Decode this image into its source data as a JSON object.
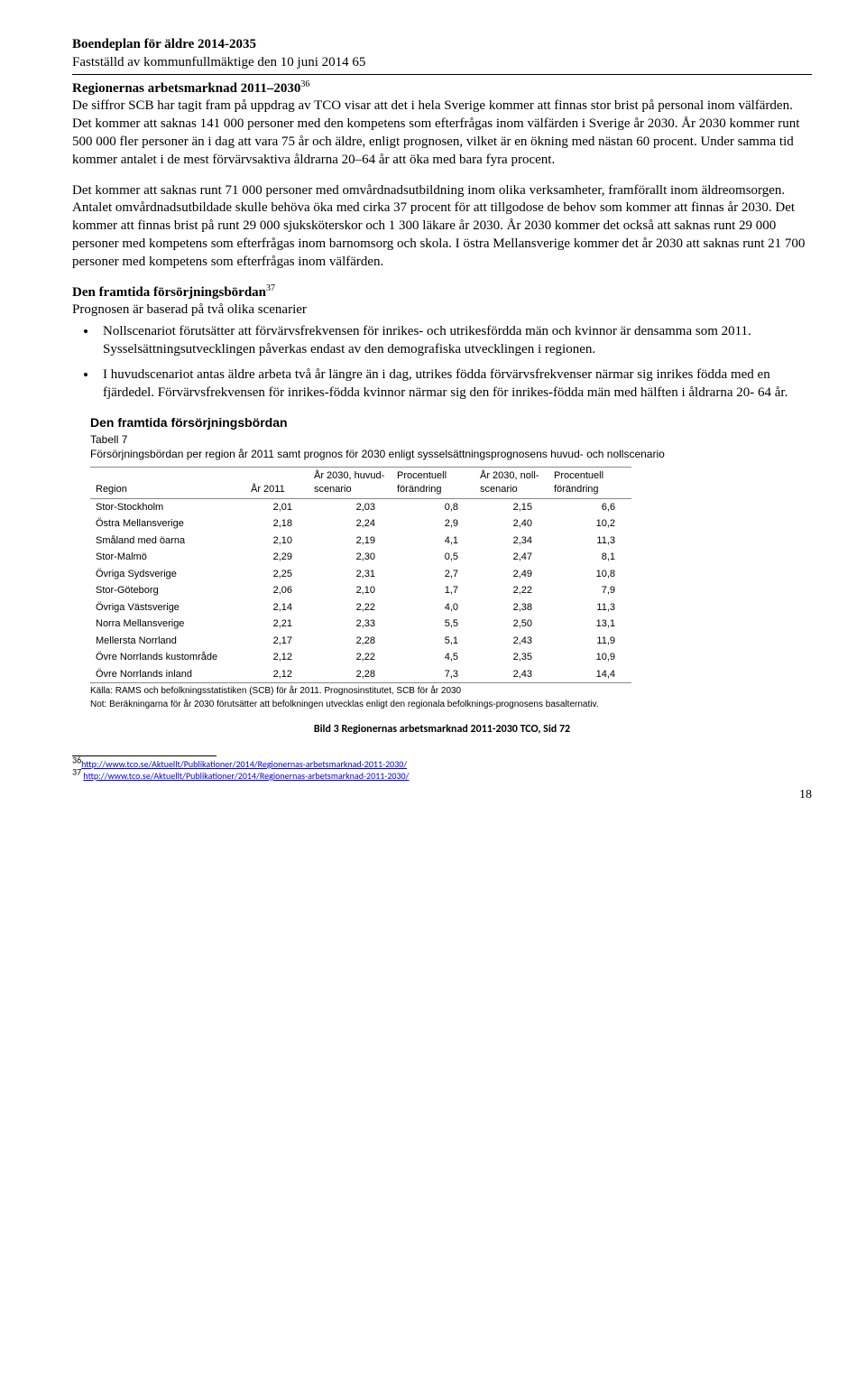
{
  "header": {
    "title": "Boendeplan för äldre 2014-2035",
    "subtitle": "Fastställd av kommunfullmäktige den 10 juni 2014 65"
  },
  "section1": {
    "heading": "Regionernas arbetsmarknad 2011–2030",
    "sup": "36",
    "para1": "De siffror SCB har tagit fram på uppdrag av TCO visar att det i hela Sverige kommer att finnas stor brist på personal inom välfärden. Det kommer att saknas 141 000 personer med den kompetens som efterfrågas inom välfärden i Sverige år 2030. År 2030 kommer runt 500 000 fler personer än i dag att vara 75 år och äldre, enligt prognosen, vilket är en ökning med nästan 60 procent. Under samma tid kommer antalet i de mest förvärvsaktiva åldrarna 20–64 år att öka med bara fyra procent.",
    "para2": "Det kommer att saknas runt 71 000 personer med omvårdnadsutbildning inom olika verksamheter, framförallt inom äldreomsorgen. Antalet omvårdnadsutbildade skulle behöva öka med cirka 37 procent för att tillgodose de behov som kommer att finnas år 2030. Det kommer att finnas brist på runt 29 000 sjuksköterskor och 1 300 läkare år 2030. År 2030 kommer det också att saknas runt 29 000 personer med kompetens som efterfrågas inom barnomsorg och skola. I östra Mellansverige kommer det år 2030 att saknas runt 21 700 personer med kompetens som efterfrågas inom välfärden."
  },
  "section2": {
    "heading": "Den framtida försörjningsbördan",
    "sup": "37",
    "intro": "Prognosen är baserad på två olika scenarier",
    "bullets": [
      "Nollscenariot förutsätter att förvärvsfrekvensen för inrikes- och utrikesfördda män och kvinnor är densamma som 2011. Sysselsättningsutvecklingen påverkas endast av den demografiska utvecklingen i regionen.",
      "I huvudscenariot antas äldre arbeta två år längre än i dag, utrikes födda förvärvsfrekvenser närmar sig inrikes födda med en fjärdedel. Förvärvsfrekvensen för inrikes-födda kvinnor närmar sig den för inrikes-födda män med hälften i åldrarna 20- 64 år."
    ]
  },
  "table": {
    "title": "Den framtida försörjningsbördan",
    "sub1": "Tabell 7",
    "sub2": "Försörjningsbördan per region år 2011 samt prognos för 2030 enligt sysselsättningsprognosens huvud- och nollscenario",
    "columns": [
      "Region",
      "År 2011",
      "År 2030, huvud-scenario",
      "Procentuell förändring",
      "År 2030, noll-scenario",
      "Procentuell förändring"
    ],
    "rows": [
      [
        "Stor-Stockholm",
        "2,01",
        "2,03",
        "0,8",
        "2,15",
        "6,6"
      ],
      [
        "Östra Mellansverige",
        "2,18",
        "2,24",
        "2,9",
        "2,40",
        "10,2"
      ],
      [
        "Småland med öarna",
        "2,10",
        "2,19",
        "4,1",
        "2,34",
        "11,3"
      ],
      [
        "Stor-Malmö",
        "2,29",
        "2,30",
        "0,5",
        "2,47",
        "8,1"
      ],
      [
        "Övriga Sydsverige",
        "2,25",
        "2,31",
        "2,7",
        "2,49",
        "10,8"
      ],
      [
        "Stor-Göteborg",
        "2,06",
        "2,10",
        "1,7",
        "2,22",
        "7,9"
      ],
      [
        "Övriga Västsverige",
        "2,14",
        "2,22",
        "4,0",
        "2,38",
        "11,3"
      ],
      [
        "Norra Mellansverige",
        "2,21",
        "2,33",
        "5,5",
        "2,50",
        "13,1"
      ],
      [
        "Mellersta Norrland",
        "2,17",
        "2,28",
        "5,1",
        "2,43",
        "11,9"
      ],
      [
        "Övre Norrlands kustområde",
        "2,12",
        "2,22",
        "4,5",
        "2,35",
        "10,9"
      ],
      [
        "Övre Norrlands inland",
        "2,12",
        "2,28",
        "7,3",
        "2,43",
        "14,4"
      ]
    ],
    "note1": "Källa: RAMS och befolkningsstatistiken (SCB) för år 2011. Prognosinstitutet, SCB för år 2030",
    "note2": "Not: Beräkningarna för år 2030 förutsätter att befolkningen utvecklas enligt den regionala befolknings-prognosens basalternativ."
  },
  "caption": "Bild 3 Regionernas arbetsmarknad 2011-2030 TCO, Sid 72",
  "footnotes": {
    "n36": "36",
    "n37": "37",
    "url": "http://www.tco.se/Aktuellt/Publikationer/2014/Regionernas-arbetsmarknad-2011-2030/"
  },
  "pageNumber": "18"
}
